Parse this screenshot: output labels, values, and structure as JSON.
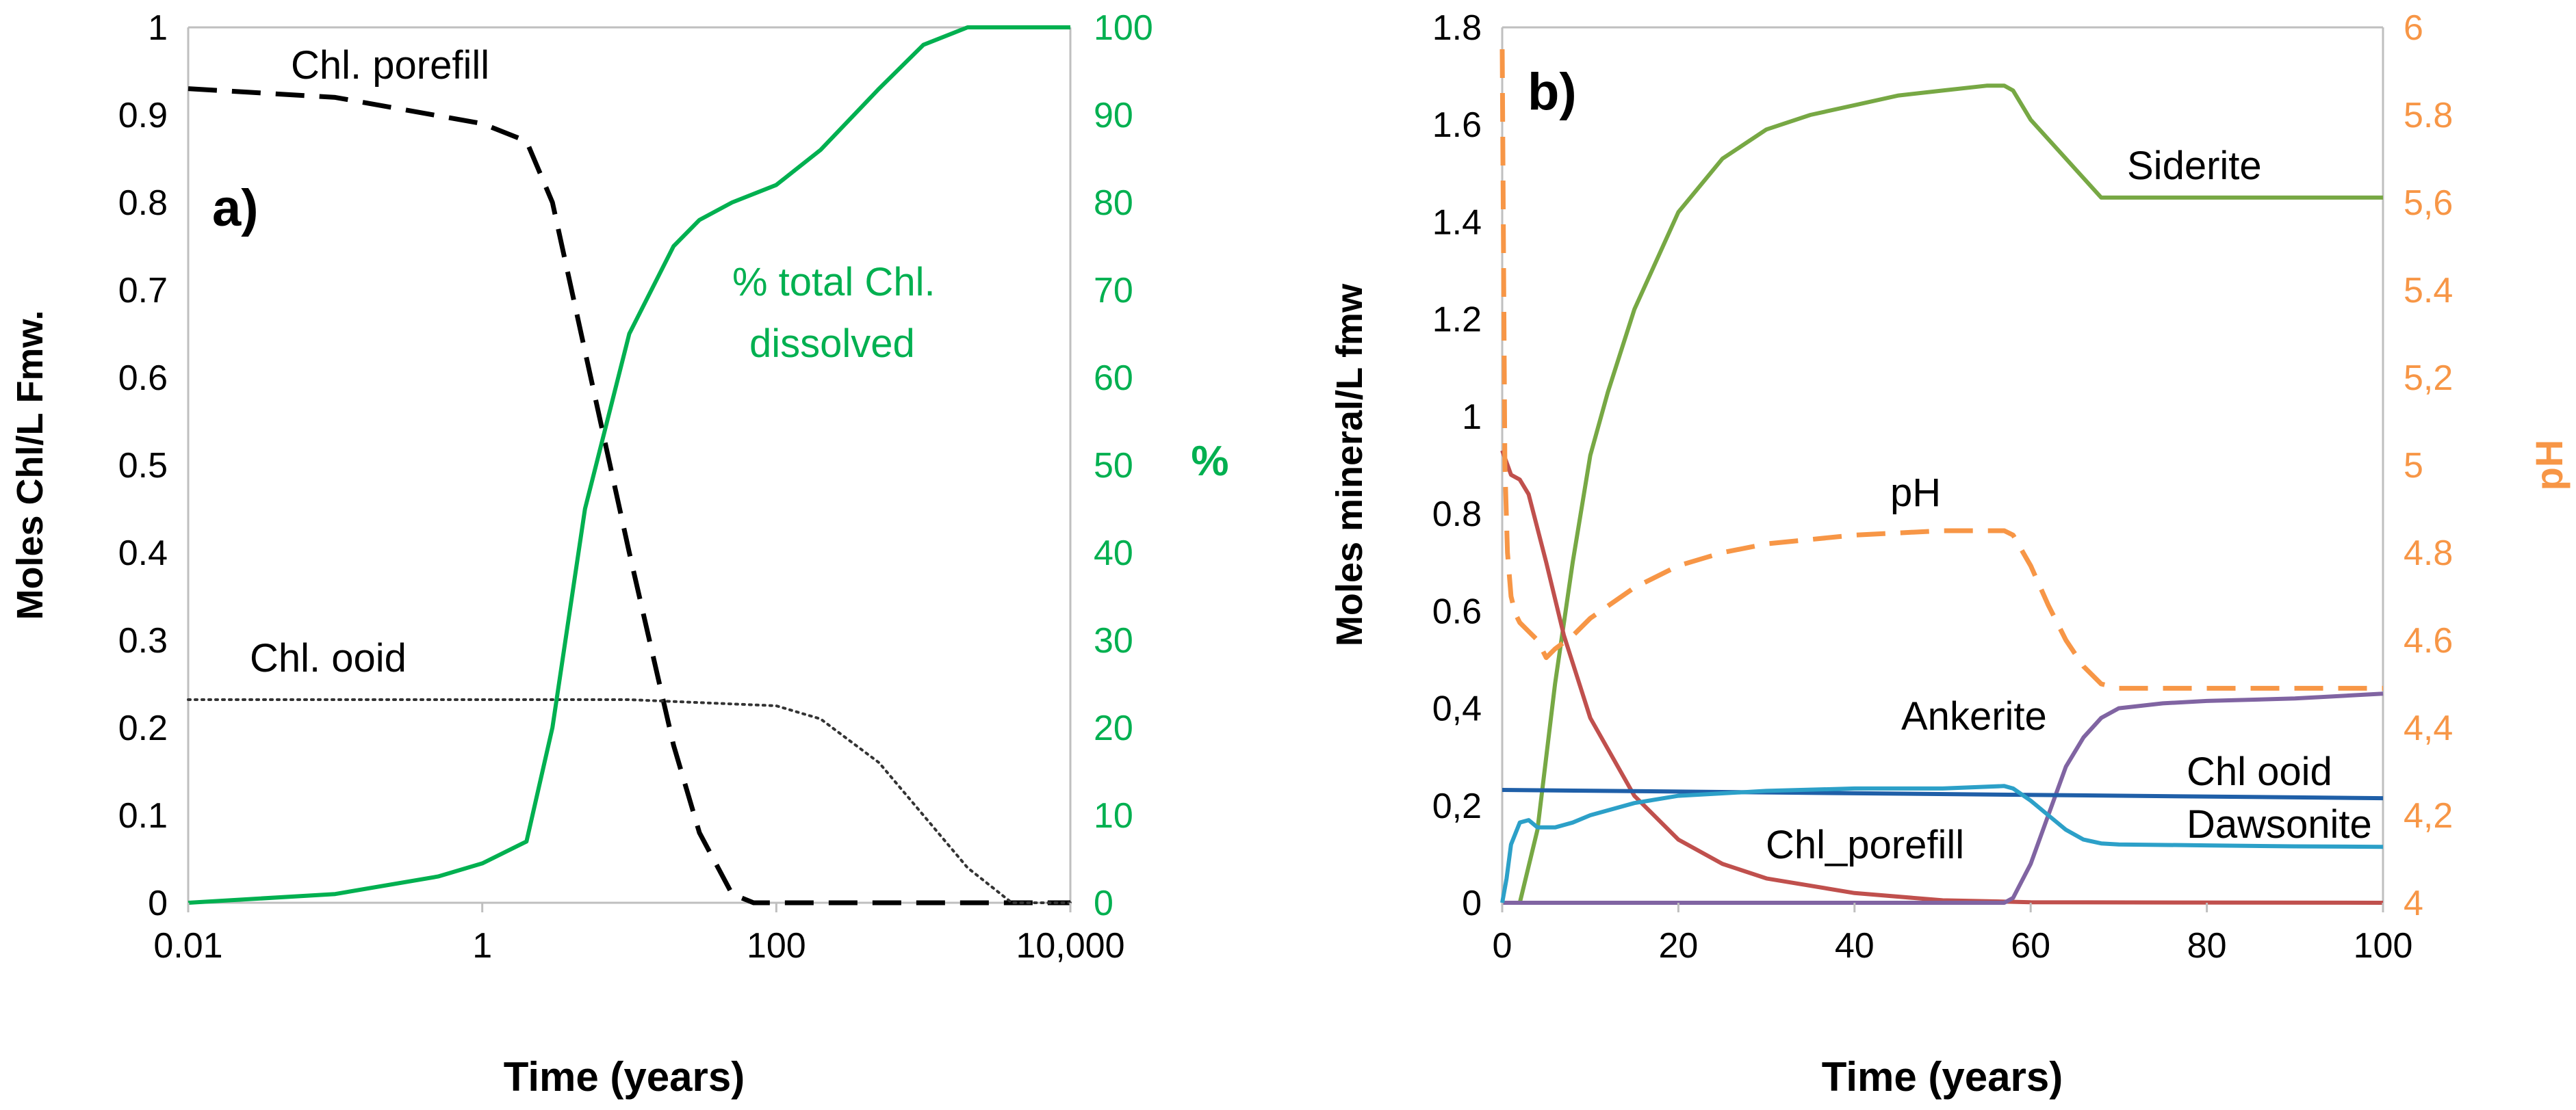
{
  "chart_data": [
    {
      "panel": "a)",
      "type": "line",
      "xscale": "log",
      "xlabel": "Time (years)",
      "xlim": [
        0.01,
        10000
      ],
      "xticks": [
        {
          "value": 0.01,
          "label": "0.01"
        },
        {
          "value": 1,
          "label": "1"
        },
        {
          "value": 100,
          "label": "100"
        },
        {
          "value": 10000,
          "label": "10,000"
        }
      ],
      "ylabel": "Moles Chl/L Fmw.",
      "ylim": [
        0,
        1
      ],
      "yticks": [
        {
          "value": 0,
          "label": "0"
        },
        {
          "value": 0.1,
          "label": "0.1"
        },
        {
          "value": 0.2,
          "label": "0.2"
        },
        {
          "value": 0.3,
          "label": "0.3"
        },
        {
          "value": 0.4,
          "label": "0.4"
        },
        {
          "value": 0.5,
          "label": "0.5"
        },
        {
          "value": 0.6,
          "label": "0.6"
        },
        {
          "value": 0.7,
          "label": "0.7"
        },
        {
          "value": 0.8,
          "label": "0.8"
        },
        {
          "value": 0.9,
          "label": "0.9"
        },
        {
          "value": 1,
          "label": "1"
        }
      ],
      "y2label": "%",
      "y2lim": [
        0,
        100
      ],
      "y2ticks": [
        {
          "value": 0,
          "label": "0"
        },
        {
          "value": 10,
          "label": "10"
        },
        {
          "value": 20,
          "label": "20"
        },
        {
          "value": 30,
          "label": "30"
        },
        {
          "value": 40,
          "label": "40"
        },
        {
          "value": 50,
          "label": "50"
        },
        {
          "value": 60,
          "label": "60"
        },
        {
          "value": 70,
          "label": "70"
        },
        {
          "value": 80,
          "label": "80"
        },
        {
          "value": 90,
          "label": "90"
        },
        {
          "value": 100,
          "label": "100"
        }
      ],
      "y2color": "#00b050",
      "series": [
        {
          "name": "Chl. porefill",
          "axis": "y",
          "color": "#000000",
          "style": "dashed",
          "x": [
            0.01,
            0.1,
            1,
            2,
            3,
            5,
            10,
            20,
            30,
            50,
            70,
            100,
            10000
          ],
          "y": [
            0.93,
            0.92,
            0.89,
            0.87,
            0.8,
            0.63,
            0.4,
            0.18,
            0.08,
            0.01,
            0.0,
            0.0,
            0.0
          ]
        },
        {
          "name": "Chl. ooid",
          "axis": "y",
          "color": "#333333",
          "style": "dotted",
          "x": [
            0.01,
            1,
            10,
            100,
            200,
            500,
            1000,
            2000,
            4000,
            10000
          ],
          "y": [
            0.232,
            0.232,
            0.232,
            0.225,
            0.21,
            0.16,
            0.1,
            0.04,
            0.0,
            0.0
          ],
          "label": "Chl. ooid"
        },
        {
          "name": "% total Chl. dissolved",
          "axis": "y2",
          "color": "#00b050",
          "style": "solid",
          "x": [
            0.01,
            0.1,
            0.5,
            1,
            2,
            3,
            5,
            10,
            20,
            30,
            50,
            100,
            200,
            500,
            1000,
            2000,
            4000,
            10000
          ],
          "y": [
            0,
            1,
            3,
            4.5,
            7,
            20,
            45,
            65,
            75,
            78,
            80,
            82,
            86,
            93,
            98,
            100,
            100,
            100
          ]
        }
      ],
      "labels": {
        "porefill": "Chl. porefill",
        "ooid": "Chl. ooid",
        "total_line1": "% total Chl.",
        "total_line2": "dissolved"
      }
    },
    {
      "panel": "b)",
      "type": "line",
      "xlabel": "Time (years)",
      "xlim": [
        0,
        100
      ],
      "xticks": [
        {
          "value": 0,
          "label": "0"
        },
        {
          "value": 20,
          "label": "20"
        },
        {
          "value": 40,
          "label": "40"
        },
        {
          "value": 60,
          "label": "60"
        },
        {
          "value": 80,
          "label": "80"
        },
        {
          "value": 100,
          "label": "100"
        }
      ],
      "ylabel": "Moles mineral/L fmw",
      "ylim": [
        0,
        1.8
      ],
      "yticks": [
        {
          "value": 0,
          "label": "0"
        },
        {
          "value": 0.2,
          "label": "0,2"
        },
        {
          "value": 0.4,
          "label": "0,4"
        },
        {
          "value": 0.6,
          "label": "0.6"
        },
        {
          "value": 0.8,
          "label": "0.8"
        },
        {
          "value": 1.0,
          "label": "1"
        },
        {
          "value": 1.2,
          "label": "1.2"
        },
        {
          "value": 1.4,
          "label": "1.4"
        },
        {
          "value": 1.6,
          "label": "1.6"
        },
        {
          "value": 1.8,
          "label": "1.8"
        }
      ],
      "y2label": "pH",
      "y2lim": [
        4,
        6
      ],
      "y2ticks": [
        {
          "value": 4.0,
          "label": "4"
        },
        {
          "value": 4.2,
          "label": "4,2"
        },
        {
          "value": 4.4,
          "label": "4,4"
        },
        {
          "value": 4.6,
          "label": "4.6"
        },
        {
          "value": 4.8,
          "label": "4.8"
        },
        {
          "value": 5.0,
          "label": "5"
        },
        {
          "value": 5.2,
          "label": "5,2"
        },
        {
          "value": 5.4,
          "label": "5.4"
        },
        {
          "value": 5.6,
          "label": "5,6"
        },
        {
          "value": 5.8,
          "label": "5.8"
        },
        {
          "value": 6.0,
          "label": "6"
        }
      ],
      "y2color": "#f79646",
      "series": [
        {
          "name": "Siderite",
          "axis": "y",
          "color": "#77a844",
          "style": "solid",
          "x": [
            0,
            2,
            4,
            6,
            8,
            10,
            12,
            15,
            20,
            25,
            30,
            35,
            40,
            45,
            50,
            55,
            57,
            58,
            60,
            63,
            66,
            68,
            70,
            75,
            80,
            90,
            100
          ],
          "y": [
            0,
            0,
            0.15,
            0.45,
            0.7,
            0.92,
            1.05,
            1.22,
            1.42,
            1.53,
            1.59,
            1.62,
            1.64,
            1.66,
            1.67,
            1.68,
            1.68,
            1.67,
            1.61,
            1.55,
            1.49,
            1.45,
            1.45,
            1.45,
            1.45,
            1.45,
            1.45
          ]
        },
        {
          "name": "Chl_porefill",
          "axis": "y",
          "color": "#c0504d",
          "style": "solid",
          "x": [
            0,
            1,
            2,
            3,
            5,
            7,
            10,
            15,
            20,
            25,
            30,
            40,
            50,
            58,
            60,
            100
          ],
          "y": [
            0.93,
            0.88,
            0.87,
            0.84,
            0.7,
            0.55,
            0.38,
            0.22,
            0.13,
            0.08,
            0.05,
            0.02,
            0.005,
            0.002,
            0.001,
            0.0
          ]
        },
        {
          "name": "Ankerite",
          "axis": "y",
          "color": "#8064a2",
          "style": "solid",
          "x": [
            0,
            57,
            58,
            60,
            62,
            64,
            66,
            68,
            70,
            75,
            80,
            90,
            100
          ],
          "y": [
            0,
            0,
            0.01,
            0.08,
            0.18,
            0.28,
            0.34,
            0.38,
            0.4,
            0.41,
            0.415,
            0.42,
            0.43
          ]
        },
        {
          "name": "Chl ooid",
          "axis": "y",
          "color": "#1f5fa8",
          "style": "solid",
          "x": [
            0,
            100
          ],
          "y": [
            0.232,
            0.215
          ]
        },
        {
          "name": "Dawsonite",
          "axis": "y",
          "color": "#2ca0c8",
          "style": "solid",
          "x": [
            0,
            0.5,
            1,
            2,
            3,
            4,
            6,
            8,
            10,
            15,
            20,
            30,
            40,
            50,
            57,
            58,
            60,
            62,
            64,
            66,
            68,
            70,
            80,
            90,
            100
          ],
          "y": [
            0,
            0.05,
            0.12,
            0.165,
            0.17,
            0.155,
            0.155,
            0.165,
            0.18,
            0.205,
            0.22,
            0.23,
            0.235,
            0.235,
            0.24,
            0.235,
            0.21,
            0.18,
            0.15,
            0.13,
            0.122,
            0.12,
            0.118,
            0.116,
            0.115
          ]
        },
        {
          "name": "pH",
          "axis": "y2",
          "color": "#f79646",
          "style": "dashed",
          "x": [
            0,
            0.3,
            0.6,
            1,
            1.5,
            2,
            3,
            4,
            5,
            6,
            8,
            10,
            15,
            20,
            25,
            30,
            40,
            50,
            56,
            57,
            58,
            60,
            62,
            64,
            66,
            68,
            70,
            75,
            80,
            90,
            100
          ],
          "y": [
            5.95,
            5.0,
            4.8,
            4.7,
            4.66,
            4.64,
            4.62,
            4.6,
            4.56,
            4.58,
            4.61,
            4.65,
            4.72,
            4.77,
            4.8,
            4.82,
            4.84,
            4.85,
            4.85,
            4.85,
            4.84,
            4.77,
            4.68,
            4.6,
            4.54,
            4.5,
            4.49,
            4.49,
            4.49,
            4.49,
            4.49
          ]
        }
      ],
      "labels": {
        "siderite": "Siderite",
        "ph": "pH",
        "ankerite": "Ankerite",
        "chl_ooid": "Chl ooid",
        "dawsonite": "Dawsonite",
        "chl_porefill": "Chl_porefill"
      }
    }
  ]
}
